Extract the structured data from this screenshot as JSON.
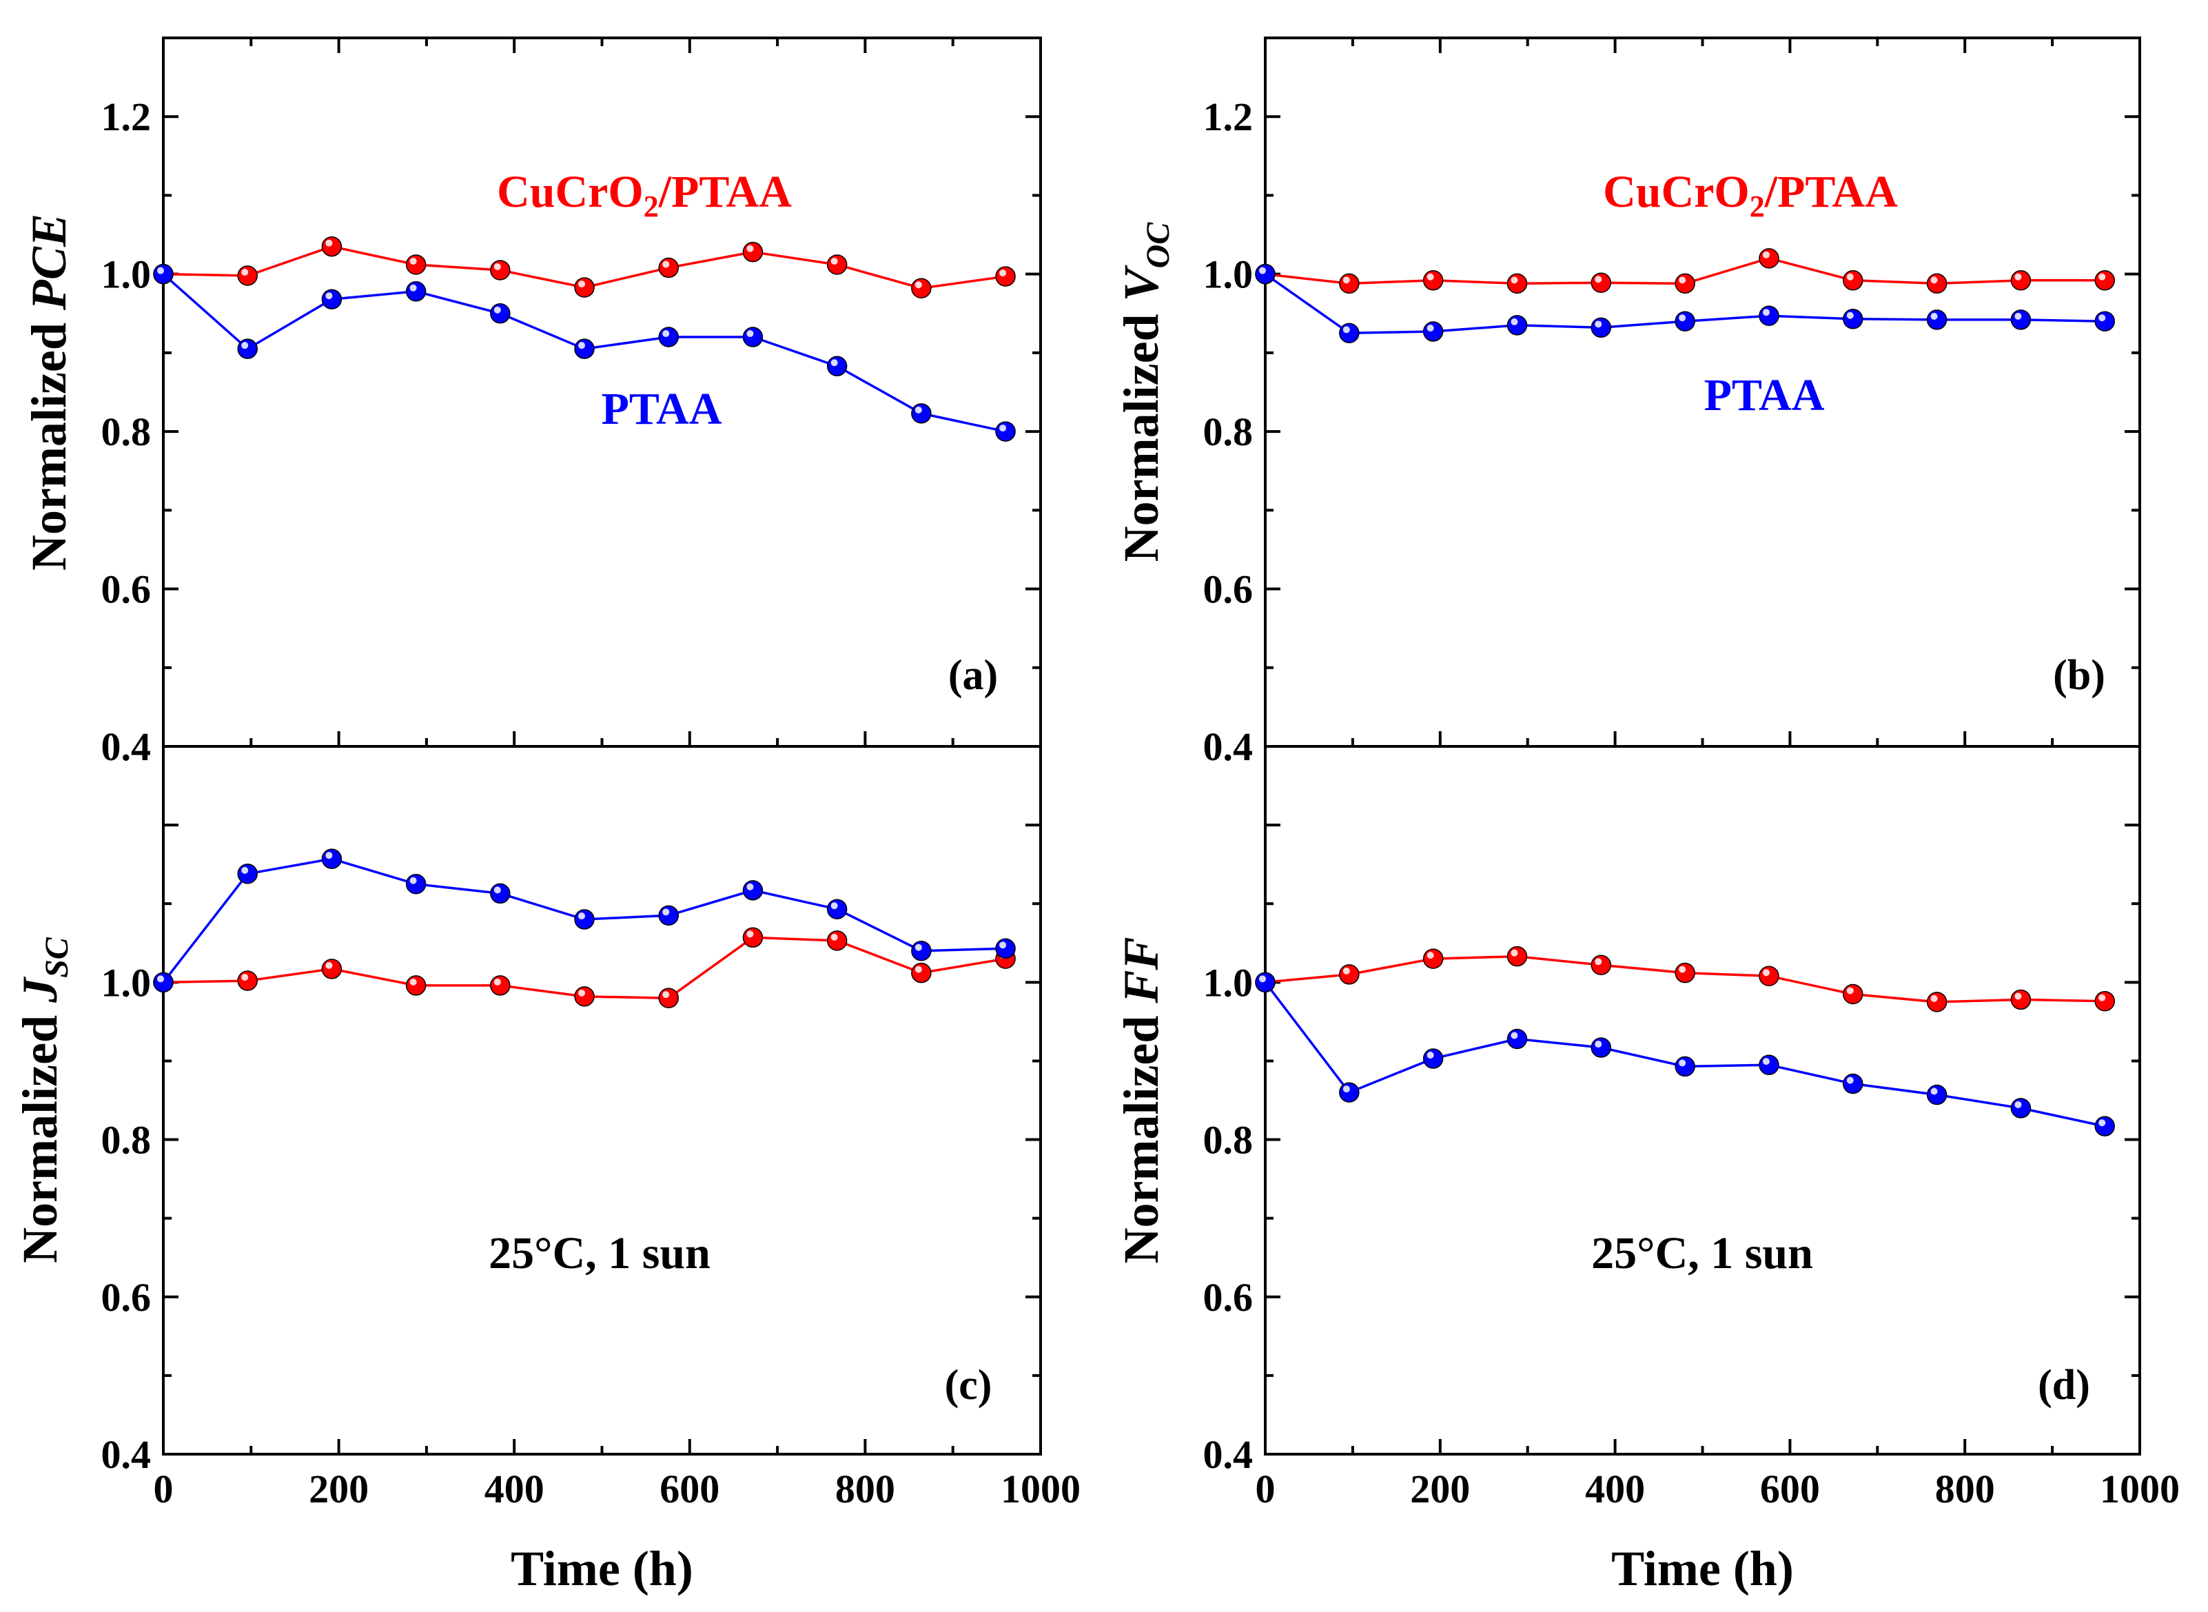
{
  "chart_data": [
    {
      "panel": "(a)",
      "type": "line",
      "ylabel": "Normalized PCE",
      "ylabel_prefix": "Normalized ",
      "ylabel_var": "PCE",
      "ylabel_sub": "",
      "xlabel": "",
      "ylim": [
        0.4,
        1.3
      ],
      "yticks": [
        "0.4",
        "0.6",
        "0.8",
        "1.0",
        "1.2"
      ],
      "xlim": [
        0,
        1000
      ],
      "x": [
        0,
        96,
        192,
        288,
        384,
        480,
        576,
        672,
        768,
        864,
        960
      ],
      "series": [
        {
          "name": "CuCrO2/PTAA",
          "color": "#ff0000",
          "values": [
            1.0,
            0.998,
            1.035,
            1.012,
            1.005,
            0.983,
            1.008,
            1.028,
            1.012,
            0.982,
            0.997
          ]
        },
        {
          "name": "PTAA",
          "color": "#0000ff",
          "values": [
            1.0,
            0.905,
            0.968,
            0.978,
            0.95,
            0.905,
            0.92,
            0.92,
            0.883,
            0.823,
            0.8
          ]
        }
      ],
      "annotations": {
        "top": {
          "main": "CuCrO",
          "sub": "2",
          "rest": "/PTAA"
        },
        "second": "PTAA"
      }
    },
    {
      "panel": "(b)",
      "type": "line",
      "ylabel": "Normalized VOC",
      "ylabel_prefix": "Normalized ",
      "ylabel_var": "V",
      "ylabel_sub": "OC",
      "xlabel": "",
      "ylim": [
        0.4,
        1.3
      ],
      "yticks": [
        "0.4",
        "0.6",
        "0.8",
        "1.0",
        "1.2"
      ],
      "xlim": [
        0,
        1000
      ],
      "x": [
        0,
        96,
        192,
        288,
        384,
        480,
        576,
        672,
        768,
        864,
        960
      ],
      "series": [
        {
          "name": "CuCrO2/PTAA",
          "color": "#ff0000",
          "values": [
            1.0,
            0.988,
            0.992,
            0.988,
            0.989,
            0.988,
            1.02,
            0.992,
            0.988,
            0.992,
            0.992
          ]
        },
        {
          "name": "PTAA",
          "color": "#0000ff",
          "values": [
            1.0,
            0.925,
            0.927,
            0.935,
            0.932,
            0.94,
            0.947,
            0.943,
            0.942,
            0.942,
            0.94
          ]
        }
      ],
      "annotations": {
        "top": {
          "main": "CuCrO",
          "sub": "2",
          "rest": "/PTAA"
        },
        "second": "PTAA"
      }
    },
    {
      "panel": "(c)",
      "type": "line",
      "ylabel": "Normalized JSC",
      "ylabel_prefix": "Normalized ",
      "ylabel_var": "J",
      "ylabel_sub": "SC",
      "xlabel": "Time (h)",
      "ylim": [
        0.4,
        1.3
      ],
      "yticks": [
        "0.4",
        "0.6",
        "0.8",
        "1.0"
      ],
      "xlim": [
        0,
        1000
      ],
      "xticks": [
        "0",
        "200",
        "400",
        "600",
        "800",
        "1000"
      ],
      "x": [
        0,
        96,
        192,
        288,
        384,
        480,
        576,
        672,
        768,
        864,
        960
      ],
      "series": [
        {
          "name": "CuCrO2/PTAA",
          "color": "#ff0000",
          "values": [
            1.0,
            1.002,
            1.017,
            0.996,
            0.996,
            0.982,
            0.98,
            1.057,
            1.053,
            1.012,
            1.03
          ]
        },
        {
          "name": "PTAA",
          "color": "#0000ff",
          "values": [
            1.0,
            1.138,
            1.157,
            1.125,
            1.113,
            1.08,
            1.085,
            1.117,
            1.093,
            1.04,
            1.043
          ]
        }
      ],
      "annotations": {
        "condition": "25°C, 1 sun"
      }
    },
    {
      "panel": "(d)",
      "type": "line",
      "ylabel": "Normalized FF",
      "ylabel_prefix": "Normalized ",
      "ylabel_var": "FF",
      "ylabel_sub": "",
      "xlabel": "Time (h)",
      "ylim": [
        0.4,
        1.3
      ],
      "yticks": [
        "0.4",
        "0.6",
        "0.8",
        "1.0"
      ],
      "xlim": [
        0,
        1000
      ],
      "xticks": [
        "0",
        "200",
        "400",
        "600",
        "800",
        "1000"
      ],
      "x": [
        0,
        96,
        192,
        288,
        384,
        480,
        576,
        672,
        768,
        864,
        960
      ],
      "series": [
        {
          "name": "CuCrO2/PTAA",
          "color": "#ff0000",
          "values": [
            1.0,
            1.01,
            1.03,
            1.033,
            1.022,
            1.012,
            1.008,
            0.985,
            0.975,
            0.978,
            0.976
          ]
        },
        {
          "name": "PTAA",
          "color": "#0000ff",
          "values": [
            1.0,
            0.86,
            0.903,
            0.928,
            0.917,
            0.893,
            0.895,
            0.871,
            0.857,
            0.84,
            0.817
          ]
        }
      ],
      "annotations": {
        "condition": "25°C, 1 sun"
      }
    }
  ]
}
